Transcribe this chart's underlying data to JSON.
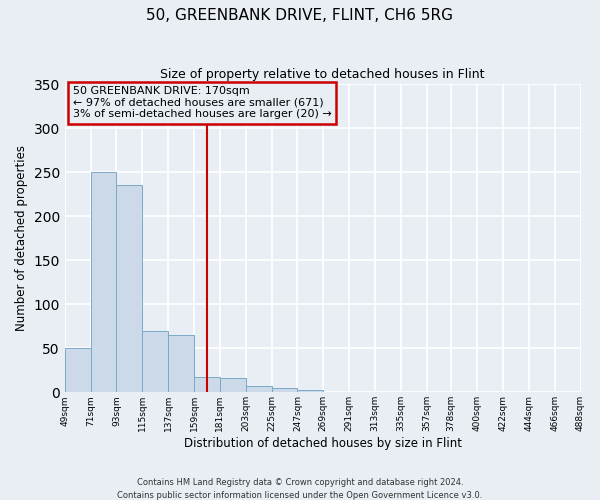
{
  "title": "50, GREENBANK DRIVE, FLINT, CH6 5RG",
  "subtitle": "Size of property relative to detached houses in Flint",
  "xlabel": "Distribution of detached houses by size in Flint",
  "ylabel": "Number of detached properties",
  "bar_color": "#ccd9e8",
  "bar_edge_color": "#7aaac8",
  "bins": [
    49,
    71,
    93,
    115,
    137,
    159,
    181,
    203,
    225,
    247,
    269,
    291,
    313,
    335,
    357,
    378,
    400,
    422,
    444,
    466,
    488
  ],
  "bin_labels": [
    "49sqm",
    "71sqm",
    "93sqm",
    "115sqm",
    "137sqm",
    "159sqm",
    "181sqm",
    "203sqm",
    "225sqm",
    "247sqm",
    "269sqm",
    "291sqm",
    "313sqm",
    "335sqm",
    "357sqm",
    "378sqm",
    "400sqm",
    "422sqm",
    "444sqm",
    "466sqm",
    "488sqm"
  ],
  "counts": [
    50,
    251,
    236,
    70,
    65,
    17,
    16,
    7,
    5,
    3,
    0,
    0,
    0,
    0,
    0,
    0,
    0,
    0,
    0,
    0
  ],
  "ylim": [
    0,
    350
  ],
  "yticks": [
    0,
    50,
    100,
    150,
    200,
    250,
    300,
    350
  ],
  "property_line_x": 170,
  "property_line_color": "#cc0000",
  "annotation_title": "50 GREENBANK DRIVE: 170sqm",
  "annotation_line1": "← 97% of detached houses are smaller (671)",
  "annotation_line2": "3% of semi-detached houses are larger (20) →",
  "annotation_box_color": "#cc0000",
  "footer1": "Contains HM Land Registry data © Crown copyright and database right 2024.",
  "footer2": "Contains public sector information licensed under the Open Government Licence v3.0.",
  "figure_bg": "#e8eef4",
  "plot_bg": "#e8eef4",
  "grid_color": "#ffffff"
}
